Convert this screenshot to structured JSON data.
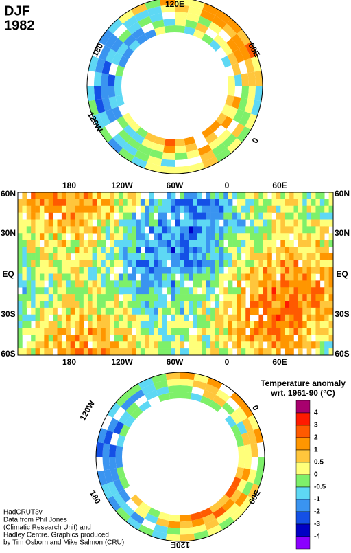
{
  "header": {
    "season": "DJF",
    "year": "1982"
  },
  "north_polar": {
    "labels": [
      "120E",
      "180",
      "60E",
      "120W",
      "0"
    ]
  },
  "main_map": {
    "top_lon_labels": [
      "180",
      "120W",
      "60W",
      "0",
      "60E"
    ],
    "bottom_lon_labels": [
      "180",
      "120W",
      "60W",
      "0",
      "60E"
    ],
    "left_lat_labels": [
      "60N",
      "30N",
      "EQ",
      "30S",
      "60S"
    ],
    "right_lat_labels": [
      "60N",
      "30N",
      "EQ",
      "30S",
      "60S"
    ]
  },
  "south_polar": {
    "labels": [
      "120W",
      "0",
      "180",
      "60E",
      "120E"
    ]
  },
  "legend": {
    "title": "Temperature anomaly",
    "subtitle": "wrt. 1961-90  (°C)",
    "colors": [
      "#a8006e",
      "#ff1a00",
      "#ff5a00",
      "#ff9600",
      "#ffc63c",
      "#ffff7a",
      "#7ef06a",
      "#5ed8f4",
      "#3a94f0",
      "#1450e6",
      "#0000c4",
      "#8a00ff"
    ],
    "labels": [
      4,
      3,
      2,
      1,
      0.5,
      0,
      -0.5,
      -1,
      -2,
      -3,
      -4
    ]
  },
  "credits": [
    "HadCRUT3v",
    "Data from Phil Jones",
    "(Climatic Research Unit) and",
    "Hadley Centre.  Graphics produced",
    "by Tim Osborn and Mike Salmon (CRU)."
  ]
}
